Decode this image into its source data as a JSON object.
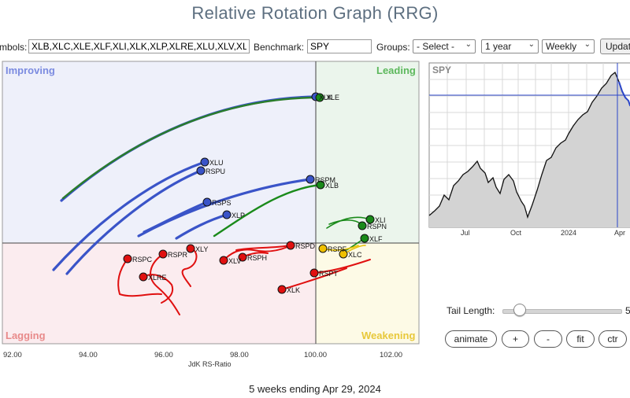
{
  "title": "Relative Rotation Graph (RRG)",
  "controls": {
    "symbols_label": "mbols:",
    "symbols_value": "XLB,XLC,XLE,XLF,XLI,XLK,XLP,XLRE,XLU,XLV,XL",
    "benchmark_label": "Benchmark:",
    "benchmark_value": "SPY",
    "groups_label": "Groups:",
    "groups_value": "- Select -",
    "period_value": "1 year",
    "interval_value": "Weekly",
    "update_label": "Updat"
  },
  "quadrants": {
    "improving": "Improving",
    "leading": "Leading",
    "lagging": "Lagging",
    "weakening": "Weakening"
  },
  "x_axis": {
    "label": "JdK RS-Ratio",
    "ticks": [
      "92.00",
      "94.00",
      "96.00",
      "98.00",
      "100.00",
      "102.00"
    ]
  },
  "colors": {
    "improving": "#3a54c8",
    "leading": "#1a8a1a",
    "lagging": "#e01010",
    "weakening": "#f0c000",
    "improving_bg": "#eef0fa",
    "leading_bg": "#ebf5ec",
    "lagging_bg": "#fbecef",
    "weakening_bg": "#fdfae6"
  },
  "symbols": [
    {
      "label": "XLK",
      "quadrant": "leading"
    },
    {
      "label": "XLE",
      "quadrant": "leading"
    },
    {
      "label": "XLU",
      "quadrant": "improving"
    },
    {
      "label": "RSPU",
      "quadrant": "improving"
    },
    {
      "label": "RSPM",
      "quadrant": "improving"
    },
    {
      "label": "XLB",
      "quadrant": "leading"
    },
    {
      "label": "RSPS",
      "quadrant": "improving"
    },
    {
      "label": "XLP",
      "quadrant": "improving"
    },
    {
      "label": "XLI",
      "quadrant": "leading"
    },
    {
      "label": "RSPN",
      "quadrant": "leading"
    },
    {
      "label": "XLF",
      "quadrant": "leading"
    },
    {
      "label": "XLY",
      "quadrant": "lagging"
    },
    {
      "label": "RSPD",
      "quadrant": "lagging"
    },
    {
      "label": "RSPF",
      "quadrant": "weakening"
    },
    {
      "label": "XLC",
      "quadrant": "weakening"
    },
    {
      "label": "RSPC",
      "quadrant": "lagging"
    },
    {
      "label": "RSPR",
      "quadrant": "lagging"
    },
    {
      "label": "XLV",
      "quadrant": "lagging"
    },
    {
      "label": "RSPH",
      "quadrant": "lagging"
    },
    {
      "label": "XLRE",
      "quadrant": "lagging"
    },
    {
      "label": "RSPT",
      "quadrant": "lagging"
    },
    {
      "label": "XLK",
      "quadrant": "lagging"
    }
  ],
  "mini_chart": {
    "label": "SPY",
    "x_ticks": [
      "Jul",
      "Oct",
      "2024",
      "Apr"
    ]
  },
  "tail": {
    "label": "Tail Length:",
    "value": "5",
    "value_fraction": 0.1
  },
  "buttons": {
    "animate": "animate",
    "plus": "+",
    "minus": "-",
    "fit": "fit",
    "ctr": "ctr"
  },
  "footer": "5 weeks ending Apr 29, 2024"
}
